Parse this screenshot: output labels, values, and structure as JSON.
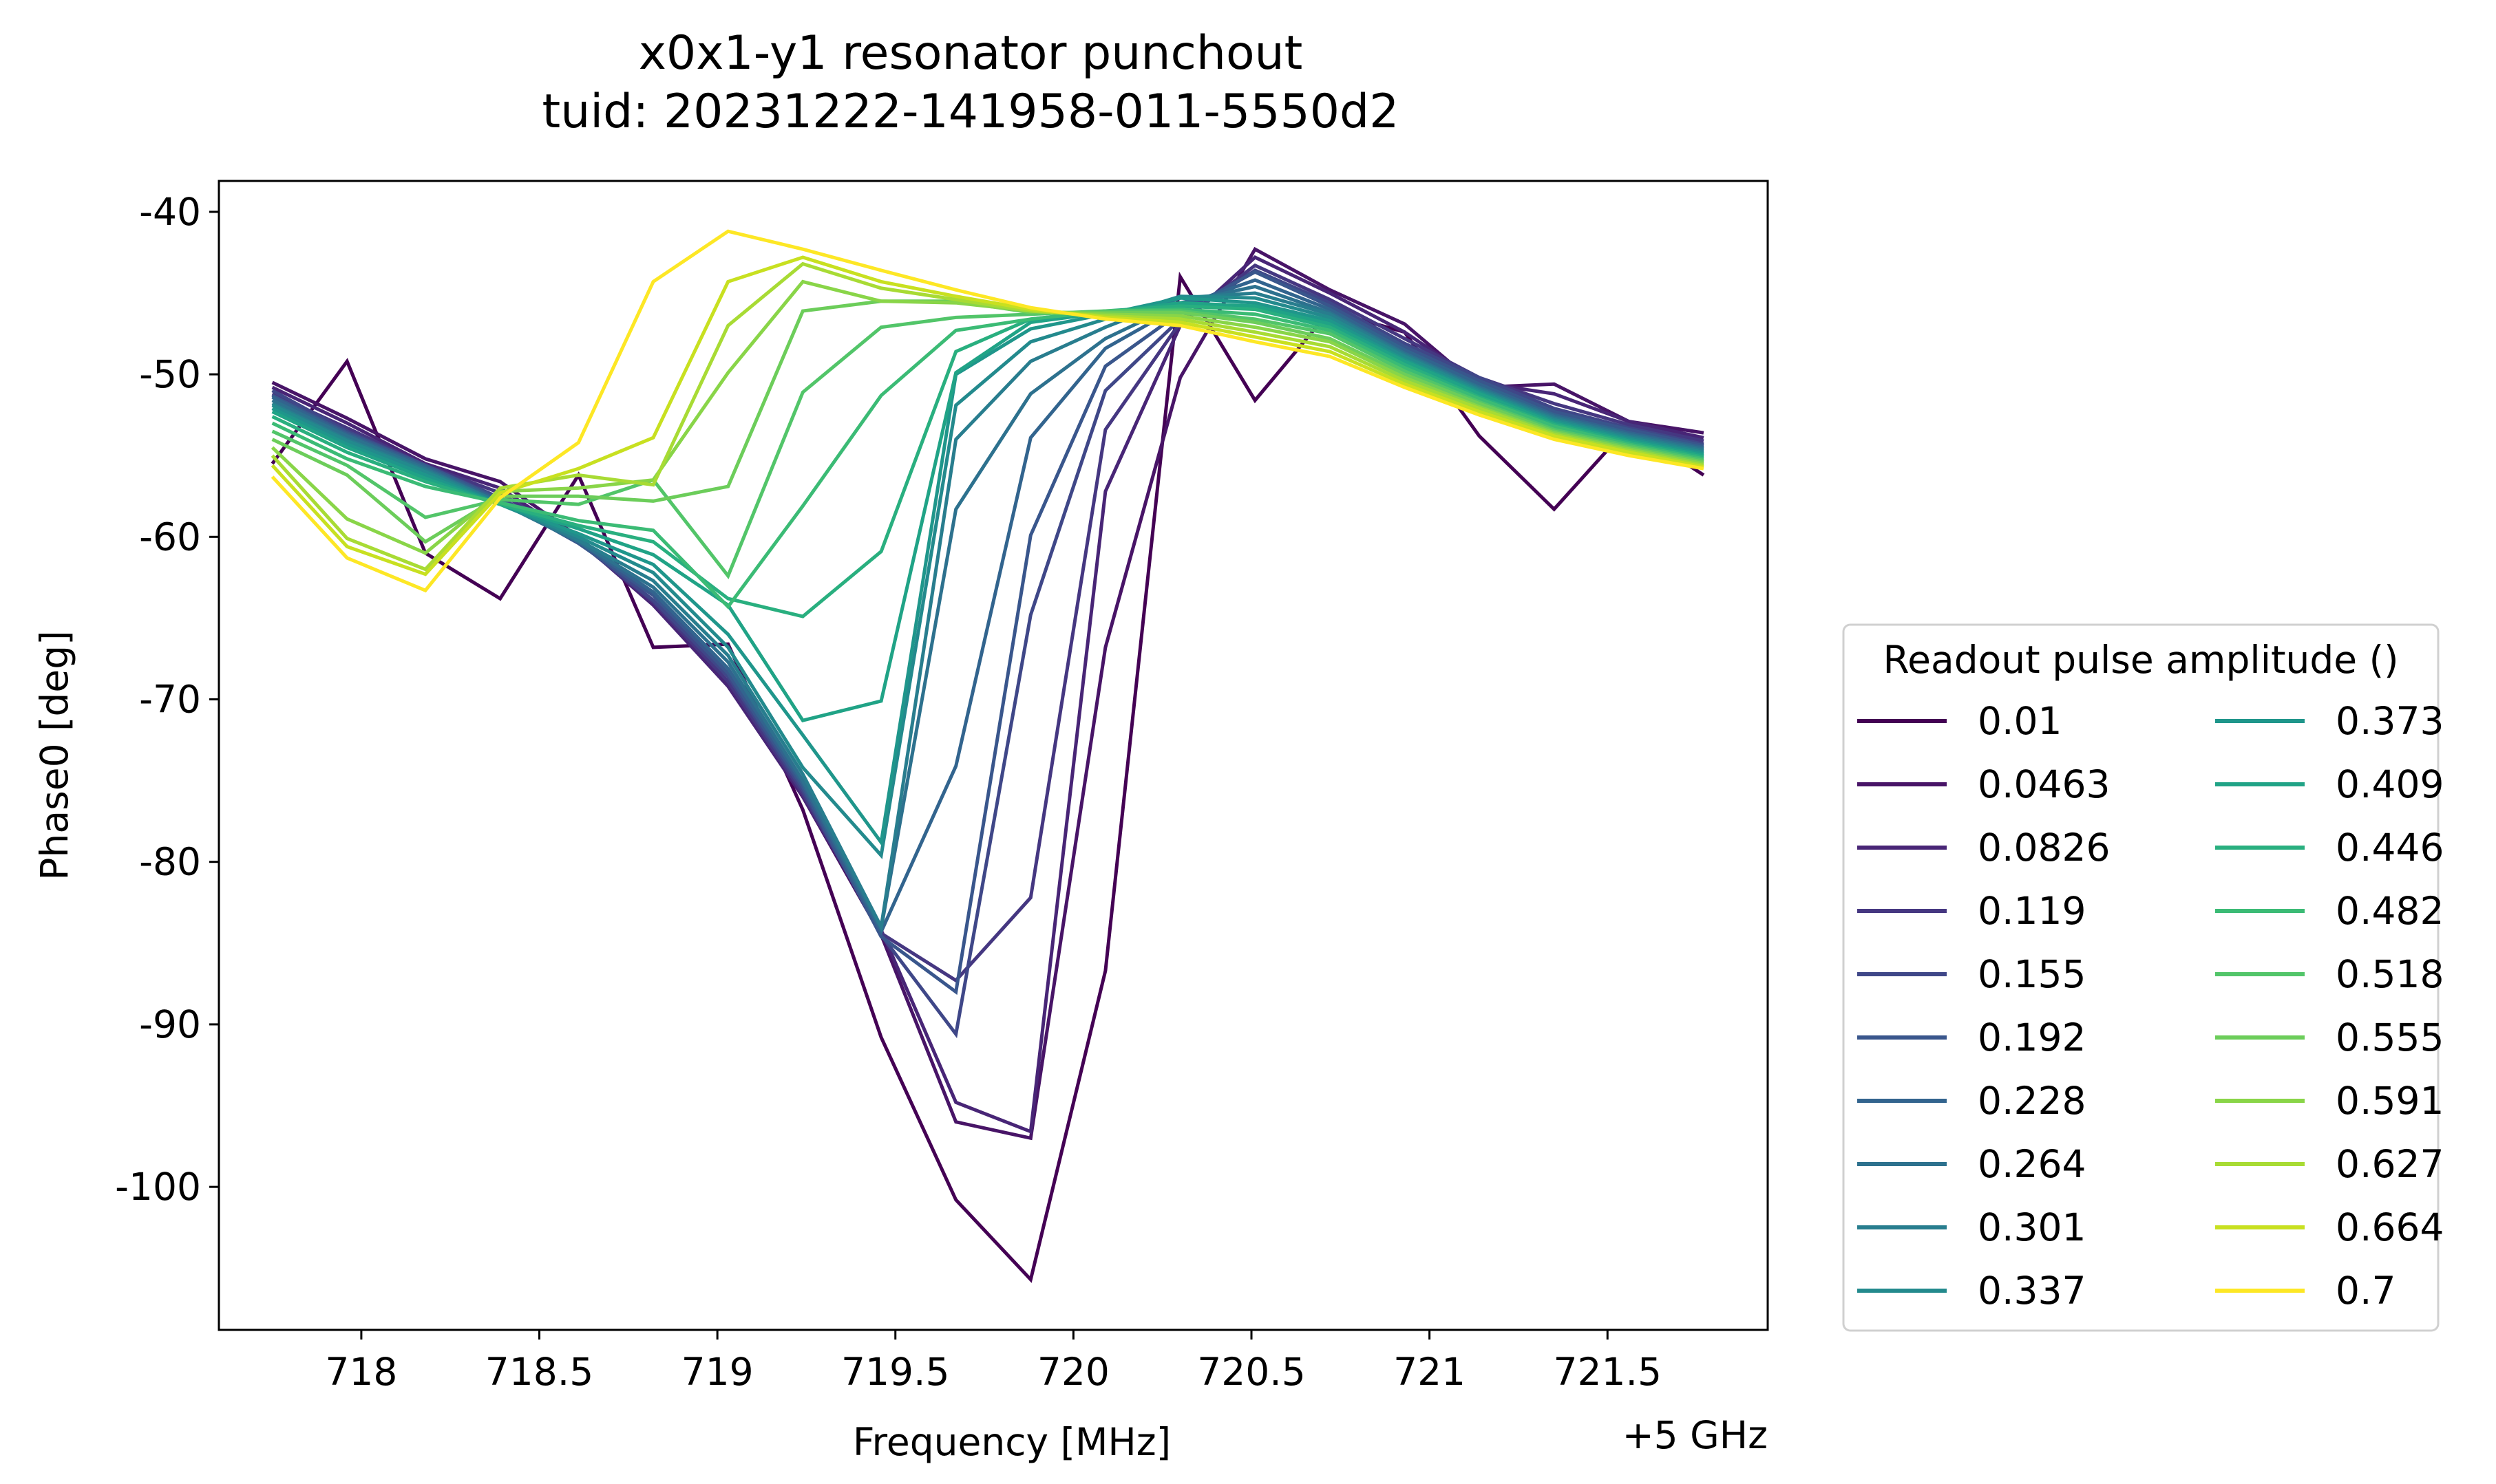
{
  "chart_data": {
    "type": "line",
    "title": "x0x1-y1 resonator punchout",
    "subtitle": "tuid: 20231222-141958-011-5550d2",
    "xlabel": "Frequency [MHz]",
    "ylabel": "Phase0 [deg]",
    "x_offset_label": "+5 GHz",
    "xlim": [
      717.6,
      721.95
    ],
    "ylim": [
      -108.8,
      -38.1
    ],
    "xticks": [
      "718",
      "718.5",
      "719",
      "719.5",
      "720",
      "720.5",
      "721",
      "721.5"
    ],
    "yticks": [
      "-40",
      "-50",
      "-60",
      "-70",
      "-80",
      "-90",
      "-100"
    ],
    "legend_title": "Readout pulse amplitude ()",
    "legend_position": "outside-right",
    "x": [
      717.75,
      717.96,
      718.18,
      718.39,
      718.61,
      718.82,
      719.03,
      719.24,
      719.46,
      719.67,
      719.88,
      720.09,
      720.3,
      720.51,
      720.72,
      720.93,
      721.14,
      721.35,
      721.56,
      721.77
    ],
    "series": [
      {
        "name": "0.01",
        "color": "#440154",
        "values": [
          -55.5,
          -49.2,
          -61.0,
          -63.8,
          -56.2,
          -66.8,
          -66.6,
          -76.8,
          -90.8,
          -100.8,
          -105.7,
          -86.7,
          -44.0,
          -51.6,
          -46.1,
          -47.4,
          -53.8,
          -58.3,
          -53.2,
          -56.2
        ]
      },
      {
        "name": "0.0463",
        "color": "#481467",
        "values": [
          -50.5,
          -52.7,
          -55.2,
          -56.6,
          -60.0,
          -64.0,
          -69.0,
          -76.0,
          -84.5,
          -96.0,
          -97.0,
          -66.8,
          -50.2,
          -42.3,
          -44.8,
          -46.9,
          -50.8,
          -50.6,
          -52.9,
          -53.6
        ]
      },
      {
        "name": "0.0826",
        "color": "#482576",
        "values": [
          -50.8,
          -53.0,
          -55.5,
          -57.0,
          -60.2,
          -64.2,
          -69.2,
          -76.0,
          -84.2,
          -94.8,
          -96.6,
          -57.2,
          -47.0,
          -42.8,
          -45.0,
          -47.4,
          -50.5,
          -51.2,
          -52.9,
          -53.9
        ]
      },
      {
        "name": "0.119",
        "color": "#453781",
        "values": [
          -51.2,
          -53.3,
          -55.6,
          -57.3,
          -60.3,
          -64.0,
          -68.9,
          -75.8,
          -84.4,
          -87.3,
          -82.2,
          -53.4,
          -46.8,
          -43.3,
          -45.4,
          -47.8,
          -50.2,
          -51.8,
          -53.1,
          -54.1
        ]
      },
      {
        "name": "0.155",
        "color": "#3f4788",
        "values": [
          -51.0,
          -53.5,
          -55.6,
          -57.6,
          -60.3,
          -63.9,
          -68.6,
          -75.6,
          -84.5,
          -90.6,
          -64.8,
          -51.0,
          -46.6,
          -43.6,
          -45.6,
          -48.1,
          -50.2,
          -52.1,
          -53.3,
          -54.3
        ]
      },
      {
        "name": "0.192",
        "color": "#39568c",
        "values": [
          -51.3,
          -53.6,
          -55.6,
          -57.7,
          -60.4,
          -63.6,
          -68.4,
          -75.4,
          -84.6,
          -88.0,
          -59.9,
          -49.5,
          -46.2,
          -43.7,
          -45.8,
          -48.3,
          -50.4,
          -52.3,
          -53.4,
          -54.4
        ]
      },
      {
        "name": "0.228",
        "color": "#32648e",
        "values": [
          -51.4,
          -53.7,
          -55.7,
          -57.8,
          -60.3,
          -63.4,
          -68.1,
          -75.2,
          -84.3,
          -74.1,
          -53.9,
          -48.4,
          -45.8,
          -44.2,
          -46.0,
          -48.5,
          -50.6,
          -52.5,
          -53.6,
          -54.5
        ]
      },
      {
        "name": "0.264",
        "color": "#2d718e",
        "values": [
          -51.6,
          -53.8,
          -55.8,
          -57.9,
          -60.3,
          -63.1,
          -67.7,
          -75.0,
          -84.1,
          -58.3,
          -51.2,
          -47.8,
          -45.6,
          -44.6,
          -46.2,
          -48.7,
          -50.8,
          -52.6,
          -53.7,
          -54.6
        ]
      },
      {
        "name": "0.301",
        "color": "#287d8e",
        "values": [
          -51.8,
          -54.0,
          -55.9,
          -57.9,
          -60.2,
          -62.7,
          -67.3,
          -74.6,
          -84.0,
          -54.0,
          -49.2,
          -47.1,
          -45.3,
          -45.0,
          -46.3,
          -48.8,
          -50.9,
          -52.7,
          -53.8,
          -54.7
        ]
      },
      {
        "name": "0.337",
        "color": "#238a8d",
        "values": [
          -51.9,
          -54.1,
          -56.0,
          -58.0,
          -60.0,
          -62.2,
          -66.8,
          -74.2,
          -79.6,
          -51.9,
          -48.0,
          -46.6,
          -45.2,
          -45.3,
          -46.5,
          -48.9,
          -51.0,
          -52.8,
          -53.9,
          -54.8
        ]
      },
      {
        "name": "0.373",
        "color": "#1f968b",
        "values": [
          -52.1,
          -54.3,
          -56.2,
          -58.0,
          -59.8,
          -61.7,
          -66.0,
          -72.2,
          -78.8,
          -50.0,
          -47.2,
          -46.3,
          -45.3,
          -45.6,
          -46.7,
          -49.1,
          -51.1,
          -52.9,
          -54.0,
          -54.9
        ]
      },
      {
        "name": "0.409",
        "color": "#20a386",
        "values": [
          -52.3,
          -54.5,
          -56.4,
          -58.0,
          -59.5,
          -61.1,
          -64.2,
          -71.3,
          -70.1,
          -49.9,
          -46.8,
          -46.2,
          -45.6,
          -45.8,
          -46.9,
          -49.2,
          -51.2,
          -53.0,
          -54.1,
          -55.0
        ]
      },
      {
        "name": "0.446",
        "color": "#29af7f",
        "values": [
          -52.6,
          -54.8,
          -56.6,
          -58.0,
          -59.3,
          -60.3,
          -63.8,
          -64.9,
          -60.9,
          -48.6,
          -46.6,
          -46.1,
          -45.8,
          -46.0,
          -47.1,
          -49.4,
          -51.4,
          -53.1,
          -54.2,
          -55.1
        ]
      },
      {
        "name": "0.482",
        "color": "#3bbb75",
        "values": [
          -53.0,
          -55.2,
          -56.9,
          -57.9,
          -59.0,
          -59.6,
          -64.3,
          -58.1,
          -51.3,
          -47.3,
          -46.6,
          -46.1,
          -46.0,
          -46.3,
          -47.3,
          -49.6,
          -51.5,
          -53.2,
          -54.3,
          -55.2
        ]
      },
      {
        "name": "0.518",
        "color": "#52c569",
        "values": [
          -53.5,
          -55.6,
          -58.8,
          -57.7,
          -58.0,
          -56.5,
          -62.4,
          -51.1,
          -47.1,
          -46.5,
          -46.3,
          -46.1,
          -46.1,
          -46.6,
          -47.5,
          -49.8,
          -51.7,
          -53.4,
          -54.4,
          -55.3
        ]
      },
      {
        "name": "0.555",
        "color": "#6ccd5a",
        "values": [
          -54.0,
          -56.2,
          -60.3,
          -57.5,
          -57.5,
          -57.8,
          -56.9,
          -46.1,
          -45.5,
          -45.5,
          -46.2,
          -46.2,
          -46.2,
          -46.8,
          -47.8,
          -50.0,
          -51.8,
          -53.5,
          -54.5,
          -55.4
        ]
      },
      {
        "name": "0.591",
        "color": "#89d548",
        "values": [
          -54.5,
          -58.9,
          -61.0,
          -57.2,
          -57.0,
          -56.5,
          -49.9,
          -44.3,
          -45.5,
          -45.6,
          -46.1,
          -46.3,
          -46.4,
          -47.1,
          -48.0,
          -50.2,
          -52.0,
          -53.6,
          -54.6,
          -55.5
        ]
      },
      {
        "name": "0.627",
        "color": "#a8db34",
        "values": [
          -55.0,
          -60.1,
          -62.0,
          -57.0,
          -56.2,
          -56.8,
          -47.0,
          -43.2,
          -44.7,
          -45.4,
          -46.1,
          -46.4,
          -46.6,
          -47.4,
          -48.3,
          -50.4,
          -52.1,
          -53.7,
          -54.7,
          -55.6
        ]
      },
      {
        "name": "0.664",
        "color": "#c8e020",
        "values": [
          -55.6,
          -60.6,
          -62.3,
          -57.3,
          -55.8,
          -53.9,
          -44.3,
          -42.8,
          -44.3,
          -45.2,
          -46.0,
          -46.5,
          -46.8,
          -47.7,
          -48.6,
          -50.6,
          -52.3,
          -53.8,
          -54.8,
          -55.7
        ]
      },
      {
        "name": "0.7",
        "color": "#fde725",
        "values": [
          -56.3,
          -61.3,
          -63.3,
          -57.6,
          -54.2,
          -44.3,
          -41.2,
          -42.3,
          -43.6,
          -44.8,
          -45.9,
          -46.6,
          -47.0,
          -48.0,
          -48.9,
          -50.8,
          -52.5,
          -54.0,
          -55.0,
          -55.8
        ]
      }
    ]
  }
}
